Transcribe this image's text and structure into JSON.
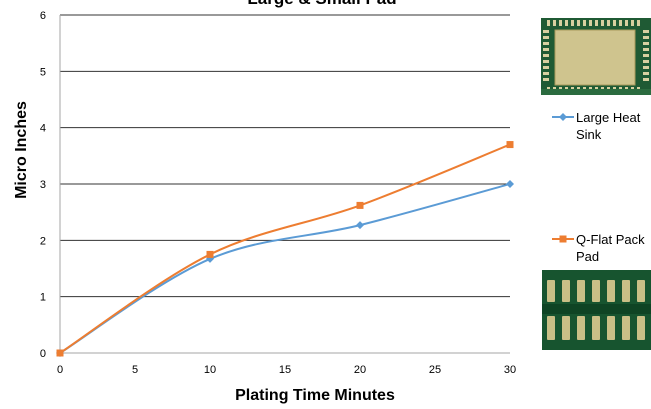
{
  "chart_data": {
    "type": "line",
    "title": "Large & Small Pad",
    "xlabel": "Plating Time Minutes",
    "ylabel": "Micro Inches",
    "xlim": [
      0,
      30
    ],
    "ylim": [
      0,
      6
    ],
    "x_ticks": [
      0,
      5,
      10,
      15,
      20,
      25,
      30
    ],
    "y_ticks": [
      0,
      1,
      2,
      3,
      4,
      5,
      6
    ],
    "grid": "horizontal",
    "legend_position": "right",
    "series": [
      {
        "name": "Large Heat Sink",
        "name_lines": [
          "Large Heat",
          "Sink"
        ],
        "marker": "diamond",
        "color": "#5b9bd5",
        "x": [
          0,
          10,
          20,
          30
        ],
        "y": [
          0,
          1.67,
          2.27,
          3.0
        ]
      },
      {
        "name": "Q-Flat Pack Pad",
        "name_lines": [
          "Q-Flat Pack",
          "Pad"
        ],
        "marker": "square",
        "color": "#ed7d31",
        "x": [
          0,
          10,
          20,
          30
        ],
        "y": [
          0,
          1.75,
          2.62,
          3.7
        ]
      }
    ]
  },
  "legend_images": [
    {
      "name": "large-heat-sink-pad-photo",
      "depicts": "PCB large heat sink pad"
    },
    {
      "name": "q-flat-pack-pad-photo",
      "depicts": "PCB Q-flat pack pads"
    }
  ]
}
